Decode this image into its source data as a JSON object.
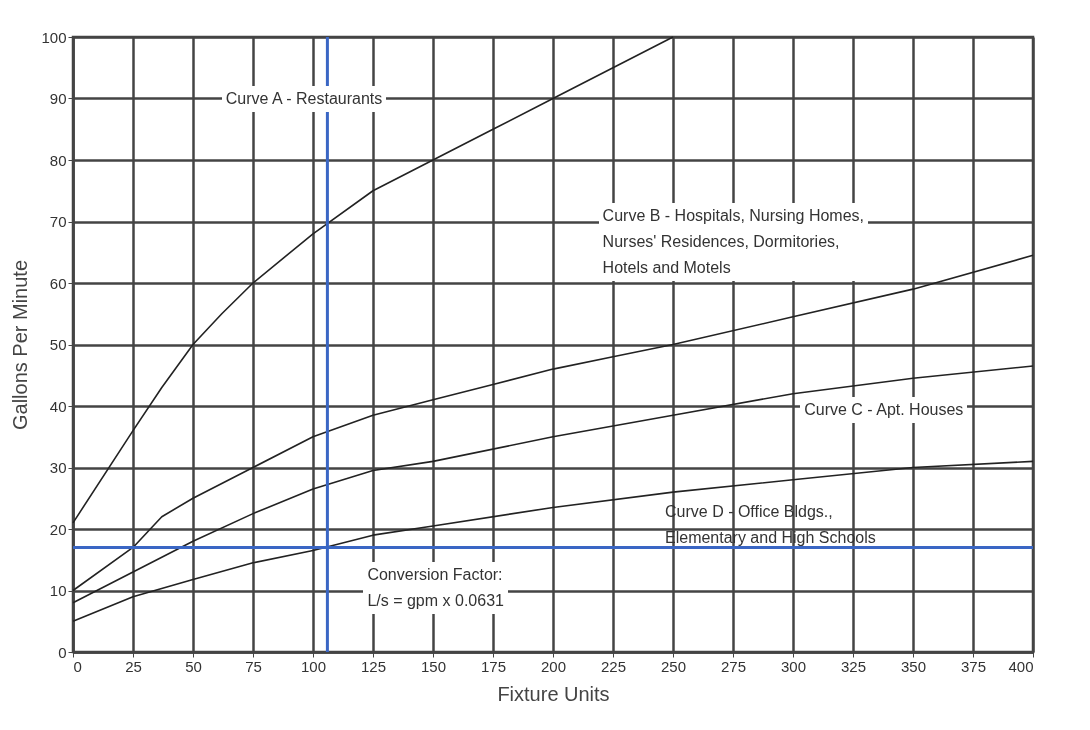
{
  "chart_data": {
    "type": "line",
    "xlabel": "Fixture Units",
    "ylabel": "Gallons Per Minute",
    "xlim": [
      0,
      400
    ],
    "ylim": [
      0,
      100
    ],
    "xticks": [
      0,
      25,
      50,
      75,
      100,
      125,
      150,
      175,
      200,
      225,
      250,
      275,
      300,
      325,
      350,
      375,
      400
    ],
    "yticks": [
      0,
      10,
      20,
      30,
      40,
      50,
      60,
      70,
      80,
      90,
      100
    ],
    "grid": true,
    "legend": false,
    "marker": "none",
    "line_style": "solid",
    "series": [
      {
        "color": "#222222",
        "x": [
          0,
          25,
          37,
          50,
          62,
          75,
          100,
          125,
          150,
          175,
          200,
          225,
          250
        ],
        "values": [
          21,
          36,
          43,
          50,
          55,
          60,
          68,
          75,
          80,
          85,
          90,
          95,
          100
        ]
      },
      {
        "color": "#222222",
        "x": [
          0,
          25,
          37,
          50,
          75,
          100,
          125,
          150,
          175,
          200,
          225,
          250,
          300,
          350,
          400
        ],
        "values": [
          10,
          17,
          22,
          25,
          30,
          35,
          38.5,
          41,
          43.5,
          46,
          48,
          50,
          54.5,
          59,
          64.5
        ]
      },
      {
        "color": "#222222",
        "x": [
          0,
          25,
          50,
          75,
          100,
          125,
          150,
          200,
          250,
          300,
          350,
          400
        ],
        "values": [
          8,
          13,
          18,
          22.5,
          26.5,
          29.5,
          31,
          35,
          38.5,
          42,
          44.5,
          46.5
        ]
      },
      {
        "color": "#222222",
        "x": [
          0,
          25,
          50,
          75,
          100,
          125,
          150,
          200,
          250,
          300,
          350,
          400
        ],
        "values": [
          5,
          9,
          11.8,
          14.5,
          16.5,
          19,
          20.5,
          23.5,
          26,
          28,
          30,
          31
        ]
      }
    ],
    "ref_lines": [
      {
        "axis": "x",
        "value": 106,
        "color": "#3a66c4"
      },
      {
        "axis": "y",
        "value": 17,
        "color": "#3a66c4"
      }
    ],
    "annotations": [
      "Curve A - Restaurants",
      "Curve B - Hospitals, Nursing Homes,\nNurses' Residences, Dormitories,\nHotels and Motels",
      "Curve C - Apt. Houses",
      "Curve D - Office Bldgs.,\nElementary and High Schools",
      "Conversion Factor:\nL/s = gpm x 0.0631"
    ]
  }
}
